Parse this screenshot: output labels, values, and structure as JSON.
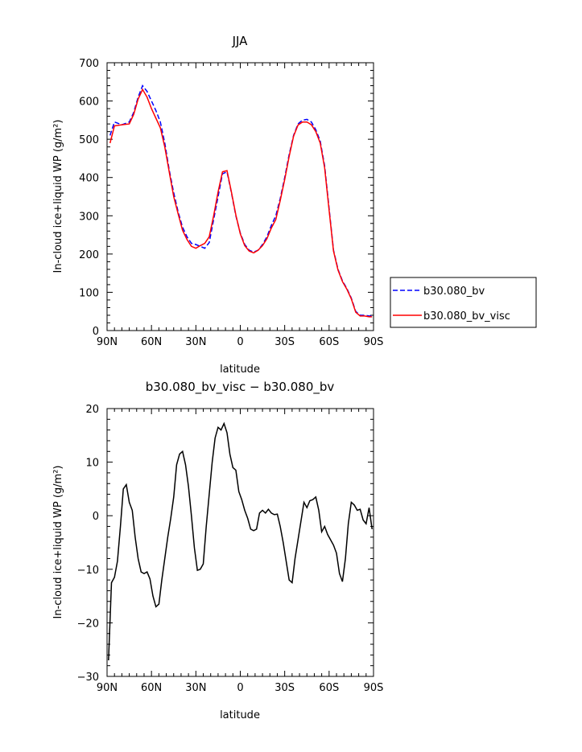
{
  "chart_data": [
    {
      "type": "line",
      "title": "JJA",
      "xlabel": "latitude",
      "ylabel": "In-cloud ice+liquid WP (g/m²)",
      "xlim": [
        90,
        -90
      ],
      "ylim": [
        0,
        700
      ],
      "x_ticks": [
        "90N",
        "60N",
        "30N",
        "0",
        "30S",
        "60S",
        "90S"
      ],
      "y_ticks": [
        "0",
        "100",
        "200",
        "300",
        "400",
        "500",
        "600",
        "700"
      ],
      "legend_position": "right",
      "series": [
        {
          "name": "b30.080_bv",
          "color": "#0000ff",
          "dash": "dashed",
          "x": [
            88,
            85,
            80,
            75,
            72,
            69,
            66,
            63,
            60,
            57,
            54,
            51,
            48,
            45,
            42,
            39,
            36,
            33,
            30,
            27,
            24,
            21,
            18,
            15,
            12,
            9,
            6,
            3,
            0,
            -3,
            -6,
            -9,
            -12,
            -15,
            -18,
            -21,
            -24,
            -27,
            -30,
            -33,
            -36,
            -39,
            -42,
            -45,
            -48,
            -51,
            -54,
            -57,
            -60,
            -63,
            -66,
            -69,
            -72,
            -75,
            -78,
            -81,
            -84,
            -87,
            -89
          ],
          "values": [
            510,
            545,
            538,
            545,
            570,
            610,
            640,
            625,
            600,
            575,
            545,
            490,
            420,
            360,
            310,
            270,
            245,
            228,
            225,
            220,
            215,
            230,
            290,
            350,
            410,
            415,
            360,
            300,
            255,
            225,
            210,
            205,
            210,
            225,
            245,
            275,
            300,
            345,
            400,
            460,
            510,
            540,
            550,
            552,
            545,
            525,
            495,
            430,
            320,
            210,
            160,
            130,
            110,
            85,
            50,
            40,
            40,
            38,
            38
          ]
        },
        {
          "name": "b30.080_bv_visc",
          "color": "#ff0000",
          "dash": "solid",
          "x": [
            88,
            85,
            80,
            75,
            72,
            69,
            66,
            63,
            60,
            57,
            54,
            51,
            48,
            45,
            42,
            39,
            36,
            33,
            30,
            27,
            24,
            21,
            18,
            15,
            12,
            9,
            6,
            3,
            0,
            -3,
            -6,
            -9,
            -12,
            -15,
            -18,
            -21,
            -24,
            -27,
            -30,
            -33,
            -36,
            -39,
            -42,
            -45,
            -48,
            -51,
            -54,
            -57,
            -60,
            -63,
            -66,
            -69,
            -72,
            -75,
            -78,
            -81,
            -84,
            -87,
            -89
          ],
          "values": [
            490,
            535,
            538,
            540,
            565,
            605,
            630,
            610,
            580,
            555,
            530,
            480,
            415,
            350,
            305,
            262,
            238,
            220,
            215,
            222,
            228,
            245,
            300,
            362,
            415,
            418,
            362,
            302,
            253,
            222,
            208,
            203,
            210,
            222,
            240,
            268,
            290,
            340,
            395,
            455,
            508,
            537,
            545,
            545,
            538,
            520,
            490,
            425,
            315,
            208,
            158,
            128,
            108,
            83,
            48,
            38,
            38,
            36,
            36
          ]
        }
      ]
    },
    {
      "type": "line",
      "title": "b30.080_bv_visc − b30.080_bv",
      "xlabel": "latitude",
      "ylabel": "In-cloud ice+liquid WP (g/m²)",
      "xlim": [
        90,
        -90
      ],
      "ylim": [
        -30,
        20
      ],
      "x_ticks": [
        "90N",
        "60N",
        "30N",
        "0",
        "30S",
        "60S",
        "90S"
      ],
      "y_ticks": [
        "−30",
        "−20",
        "−10",
        "0",
        "10",
        "20"
      ],
      "series": [
        {
          "color": "#000000",
          "dash": "solid",
          "x": [
            89,
            87,
            85,
            83,
            81,
            79,
            77,
            75,
            73,
            71,
            69,
            67,
            65,
            63,
            61,
            59,
            57,
            55,
            53,
            51,
            49,
            47,
            45,
            43,
            41,
            39,
            37,
            35,
            33,
            31,
            29,
            27,
            25,
            23,
            21,
            19,
            17,
            15,
            13,
            11,
            9,
            7,
            5,
            3,
            1,
            -1,
            -3,
            -5,
            -7,
            -9,
            -11,
            -13,
            -15,
            -17,
            -19,
            -21,
            -23,
            -25,
            -27,
            -29,
            -31,
            -33,
            -35,
            -37,
            -39,
            -41,
            -43,
            -45,
            -47,
            -49,
            -51,
            -53,
            -55,
            -57,
            -59,
            -61,
            -63,
            -65,
            -67,
            -69,
            -71,
            -73,
            -75,
            -77,
            -79,
            -81,
            -83,
            -85,
            -87,
            -89
          ],
          "values": [
            -27,
            -12.5,
            -11.5,
            -8.5,
            -2,
            5,
            5.8,
            2.5,
            1,
            -4,
            -8,
            -10.5,
            -10.8,
            -10.5,
            -11.8,
            -15,
            -17,
            -16.5,
            -12,
            -8,
            -4,
            -0.5,
            3.5,
            9.5,
            11.5,
            12,
            9.5,
            5.5,
            0,
            -6,
            -10.2,
            -10,
            -9,
            -2,
            4,
            10,
            14.5,
            16.5,
            16,
            17.2,
            15.5,
            11.5,
            9,
            8.5,
            4.5,
            3,
            1,
            -0.5,
            -2.5,
            -2.8,
            -2.5,
            0.5,
            1,
            0.5,
            1.2,
            0.5,
            0.2,
            0.3,
            -2,
            -5,
            -8.5,
            -12,
            -12.5,
            -8,
            -4.5,
            -1,
            2.5,
            1.5,
            2.8,
            3,
            3.5,
            1,
            -3,
            -2,
            -3.5,
            -4.5,
            -5.5,
            -7,
            -10.8,
            -12.3,
            -8,
            -1.5,
            2.5,
            2,
            1,
            1.2,
            -0.8,
            -1.5,
            1.5,
            -2.5
          ]
        }
      ]
    }
  ]
}
